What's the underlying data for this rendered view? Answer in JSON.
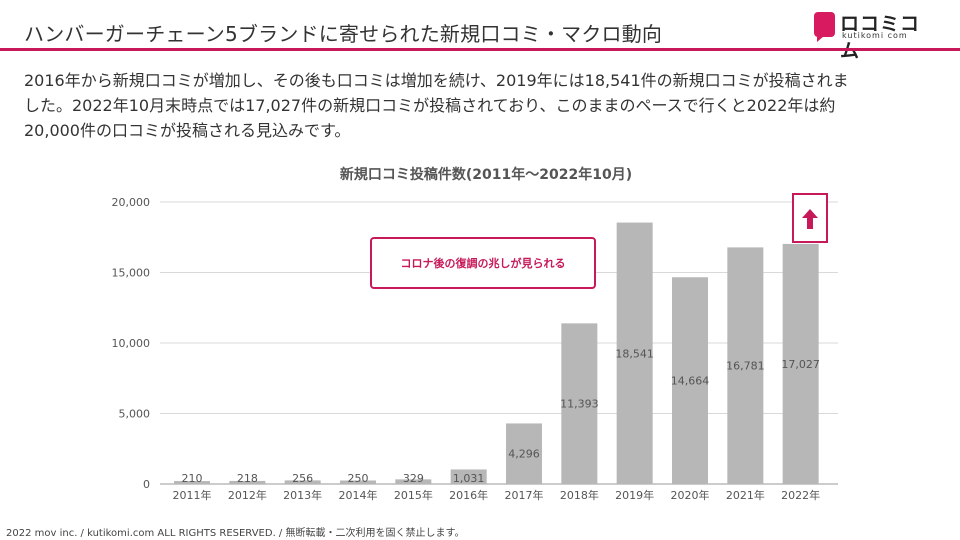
{
  "header": {
    "title": "ハンバーガーチェーン5ブランドに寄せられた新規口コミ・マクロ動向",
    "logo_name": "ロコミコム",
    "logo_sub": "kutikomi com",
    "accent_color": "#c7195a"
  },
  "intro": {
    "line1": "2016年から新規口コミが増加し、その後も口コミは増加を続け、2019年には18,541件の新規口コミが投稿されま",
    "line2": "した。2022年10月末時点では17,027件の新規口コミが投稿されており、このままのペースで行くと2022年は約",
    "line3": "20,000件の口コミが投稿される見込みです。"
  },
  "callout": {
    "text": "コロナ後の復調の兆しが見られる",
    "arrow_icon": "up-arrow-icon"
  },
  "footer": {
    "text": "2022 mov inc. / kutikomi.com ALL RIGHTS RESERVED. / 無断転載・二次利用を固く禁止します。"
  },
  "chart_data": {
    "type": "bar",
    "title": "新規口コミ投稿件数(2011年〜2022年10月)",
    "categories": [
      "2011年",
      "2012年",
      "2013年",
      "2014年",
      "2015年",
      "2016年",
      "2017年",
      "2018年",
      "2019年",
      "2020年",
      "2021年",
      "2022年"
    ],
    "values": [
      210,
      218,
      256,
      250,
      329,
      1031,
      4296,
      11393,
      18541,
      14664,
      16781,
      17027
    ],
    "value_labels": [
      "210",
      "218",
      "256",
      "250",
      "329",
      "1,031",
      "4,296",
      "11,393",
      "18,541",
      "14,664",
      "16,781",
      "17,027"
    ],
    "ylim": [
      0,
      20000
    ],
    "yticks": [
      0,
      5000,
      10000,
      15000,
      20000
    ],
    "ytick_labels": [
      "0",
      "5,000",
      "10,000",
      "15,000",
      "20,000"
    ],
    "xlabel": "",
    "ylabel": "",
    "bar_color": "#b7b7b7",
    "grid": true
  }
}
